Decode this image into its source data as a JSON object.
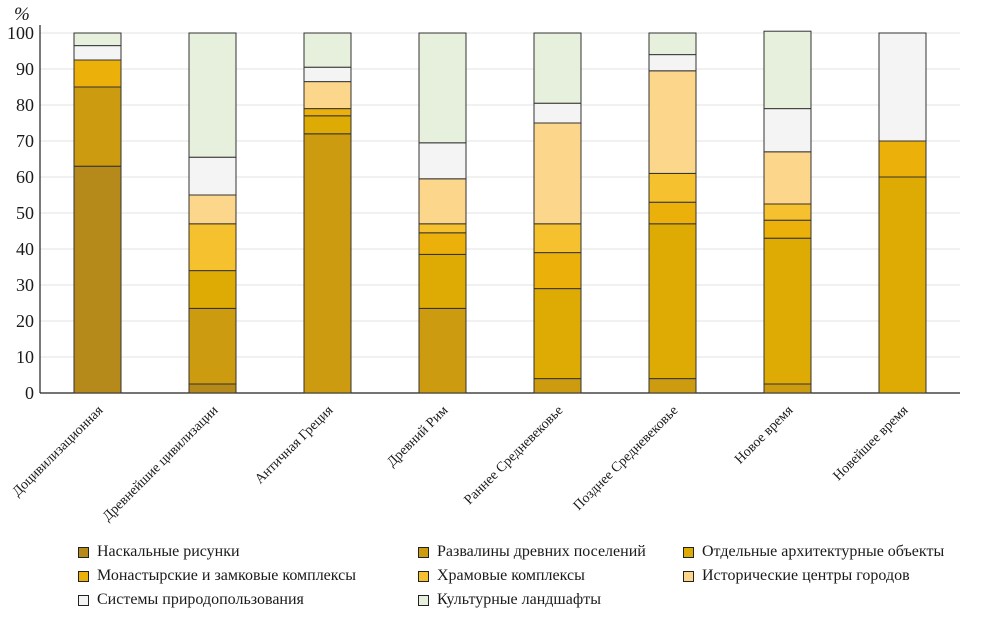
{
  "chart_data": {
    "type": "bar",
    "stacked": true,
    "title": "",
    "xlabel": "",
    "ylabel": "%",
    "ylim": [
      0,
      100
    ],
    "yticks": [
      0,
      10,
      20,
      30,
      40,
      50,
      60,
      70,
      80,
      90,
      100
    ],
    "grid": true,
    "legend_position": "bottom",
    "categories": [
      "Доцивилизационная",
      "Древнейшие цивилизации",
      "Античная Греция",
      "Древний Рим",
      "Раннее Средневековье",
      "Позднее Средневековье",
      "Новое время",
      "Новейшее время"
    ],
    "series": [
      {
        "name": "Наскальные рисунки",
        "color": "#b5891a",
        "values": [
          63,
          2.5,
          0,
          0,
          0,
          0,
          0,
          0
        ]
      },
      {
        "name": "Развалины древних поселений",
        "color": "#cc9b0f",
        "values": [
          22,
          21,
          72,
          23.5,
          4,
          4,
          2.5,
          0
        ]
      },
      {
        "name": "Отдельные архитектурные объекты",
        "color": "#deab05",
        "values": [
          0,
          10.5,
          5,
          15,
          25,
          43,
          40.5,
          60
        ]
      },
      {
        "name": "Монастырские и замковые комплексы",
        "color": "#ecb00b",
        "values": [
          7.5,
          0,
          2,
          6,
          10,
          6,
          5,
          10
        ]
      },
      {
        "name": "Храмовые комплексы",
        "color": "#f6c12e",
        "values": [
          0,
          13,
          0,
          2.5,
          8,
          8,
          4.5,
          0
        ]
      },
      {
        "name": "Исторические центры городов",
        "color": "#fcd68a",
        "values": [
          0,
          8,
          7.5,
          12.5,
          28,
          28.5,
          14.5,
          0
        ]
      },
      {
        "name": "Системы природопользования",
        "color": "#f4f4f4",
        "values": [
          4,
          10.5,
          4,
          10,
          5.5,
          4.5,
          12,
          30
        ]
      },
      {
        "name": "Культурные ландшафты",
        "color": "#e7f0dc",
        "values": [
          3.5,
          34.5,
          9.5,
          30.5,
          19.5,
          6,
          21.5,
          0
        ]
      }
    ]
  }
}
